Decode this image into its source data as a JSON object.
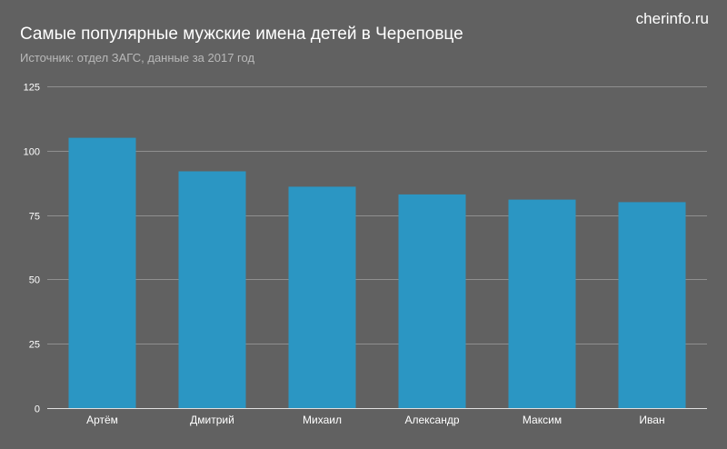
{
  "header": {
    "title": "Самые популярные мужские имена детей в Череповце",
    "subtitle": "Источник: отдел ЗАГС, данные за 2017 год",
    "brand": "cherinfo.ru"
  },
  "colors": {
    "background": "#616161",
    "bar": "#2b96c3",
    "grid": "#8f8f8f",
    "axis": "#e0e0e0",
    "text": "#ffffff"
  },
  "chart_data": {
    "type": "bar",
    "title": "Самые популярные мужские имена детей в Череповце",
    "subtitle": "Источник: отдел ЗАГС, данные за 2017 год",
    "categories": [
      "Артём",
      "Дмитрий",
      "Михаил",
      "Александр",
      "Максим",
      "Иван"
    ],
    "values": [
      105,
      92,
      86,
      83,
      81,
      80
    ],
    "yticks": [
      0,
      25,
      50,
      75,
      100,
      125
    ],
    "ylim": [
      0,
      125
    ],
    "xlabel": "",
    "ylabel": "",
    "grid": true,
    "legend": "none"
  }
}
